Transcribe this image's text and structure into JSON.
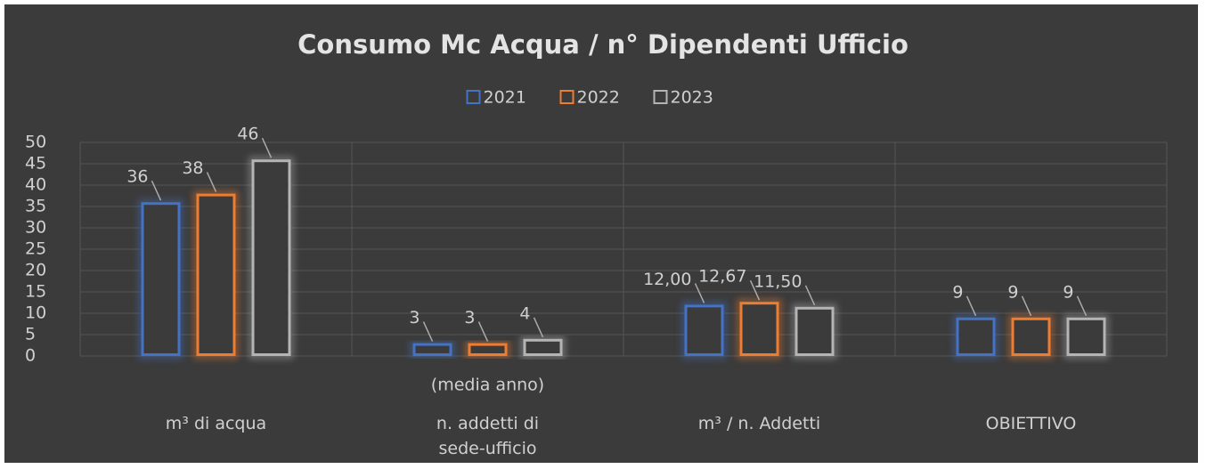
{
  "chart_data": {
    "type": "bar",
    "title": "Consumo Mc Acqua / n° Dipendenti Ufficio",
    "categories": [
      "m³ di acqua",
      "n. addetti di sede-ufficio",
      "m³ / n. Addetti",
      "OBIETTIVO"
    ],
    "annotation": "(media anno)",
    "series": [
      {
        "name": "2021",
        "color": "#4472c4",
        "values": [
          36,
          3,
          12,
          9
        ],
        "value_labels": [
          "36",
          "3",
          "12,00",
          "9"
        ]
      },
      {
        "name": "2022",
        "color": "#ed7d31",
        "values": [
          38,
          3,
          12.67,
          9
        ],
        "value_labels": [
          "38",
          "3",
          "12,67",
          "9"
        ]
      },
      {
        "name": "2023",
        "color": "#b4b4b4",
        "values": [
          46,
          4,
          11.5,
          9
        ],
        "value_labels": [
          "46",
          "4",
          "11,50",
          "9"
        ]
      }
    ],
    "ylim": [
      0,
      50
    ],
    "yticks": [
      0,
      5,
      10,
      15,
      20,
      25,
      30,
      35,
      40,
      45,
      50
    ],
    "grid": true,
    "legend": "top"
  }
}
